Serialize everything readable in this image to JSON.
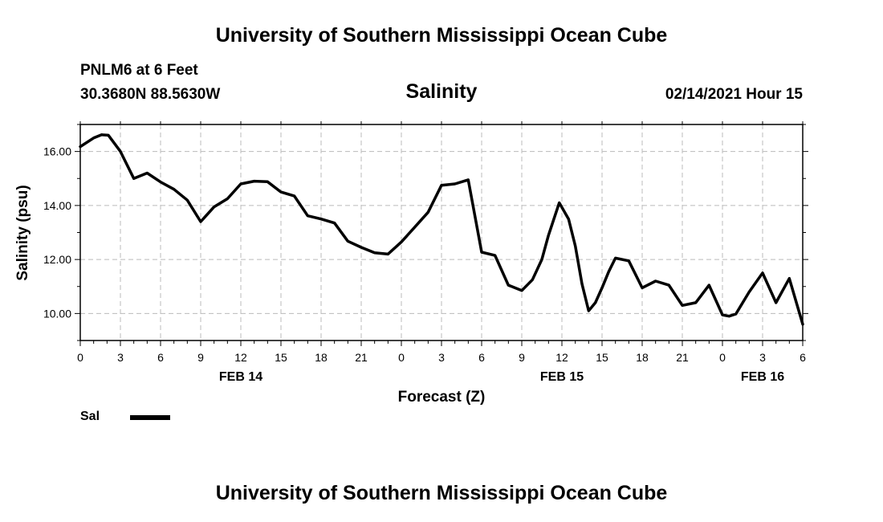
{
  "header": {
    "title": "University of Southern Mississippi Ocean Cube",
    "station": "PNLM6 at 6 Feet",
    "coords": "30.3680N 88.5630W",
    "subtitle": "Salinity",
    "datetime": "02/14/2021 Hour 15"
  },
  "footer": {
    "title": "University of Southern Mississippi Ocean Cube"
  },
  "legend": {
    "label": "Sal"
  },
  "colors": {
    "line": "#000000",
    "grid": "#bbbbbb",
    "axis": "#000000"
  },
  "chart_data": {
    "type": "line",
    "title": "Salinity",
    "xlabel": "Forecast (Z)",
    "ylabel": "Salinity (psu)",
    "xlim": [
      0,
      54
    ],
    "ylim": [
      9.0,
      17.0
    ],
    "x_ticks": [
      0,
      3,
      6,
      9,
      12,
      15,
      18,
      21,
      24,
      27,
      30,
      33,
      36,
      39,
      42,
      45,
      48,
      51,
      54
    ],
    "x_tick_labels": [
      "0",
      "3",
      "6",
      "9",
      "12",
      "15",
      "18",
      "21",
      "0",
      "3",
      "6",
      "9",
      "12",
      "15",
      "18",
      "21",
      "0",
      "3",
      "6"
    ],
    "date_labels": [
      {
        "x": 12,
        "label": "FEB 14"
      },
      {
        "x": 36,
        "label": "FEB 15"
      },
      {
        "x": 51,
        "label": "FEB 16"
      }
    ],
    "y_ticks": [
      10.0,
      12.0,
      14.0,
      16.0
    ],
    "y_tick_labels": [
      "10.00",
      "12.00",
      "14.00",
      "16.00"
    ],
    "grid": true,
    "series": [
      {
        "name": "Sal",
        "x": [
          0,
          1,
          1.6,
          2.1,
          3,
          4,
          5,
          6,
          7,
          8,
          9,
          10,
          11,
          12,
          13,
          14,
          15,
          16,
          17,
          18,
          19,
          20,
          21,
          22,
          23,
          24,
          25,
          26,
          27,
          28,
          29,
          30,
          31,
          32,
          33,
          33.8,
          34.5,
          35,
          35.8,
          36.5,
          37,
          37.5,
          38,
          38.5,
          39,
          39.5,
          40,
          41,
          42,
          43,
          44,
          45,
          46,
          47,
          48,
          48.5,
          49,
          50,
          51,
          52,
          53,
          54
        ],
        "values": [
          16.18,
          16.5,
          16.62,
          16.6,
          16.0,
          15.0,
          15.2,
          14.87,
          14.6,
          14.2,
          13.4,
          13.95,
          14.25,
          14.8,
          14.9,
          14.88,
          14.5,
          14.35,
          13.62,
          13.5,
          13.35,
          12.68,
          12.45,
          12.25,
          12.2,
          12.65,
          13.2,
          13.75,
          14.75,
          14.8,
          14.95,
          12.27,
          12.15,
          11.05,
          10.85,
          11.25,
          12.0,
          12.9,
          14.1,
          13.5,
          12.5,
          11.1,
          10.1,
          10.4,
          10.95,
          11.55,
          12.05,
          11.95,
          10.95,
          11.2,
          11.05,
          10.3,
          10.4,
          11.05,
          9.95,
          9.9,
          9.98,
          10.8,
          11.5,
          10.4,
          11.3,
          9.6
        ]
      }
    ]
  }
}
